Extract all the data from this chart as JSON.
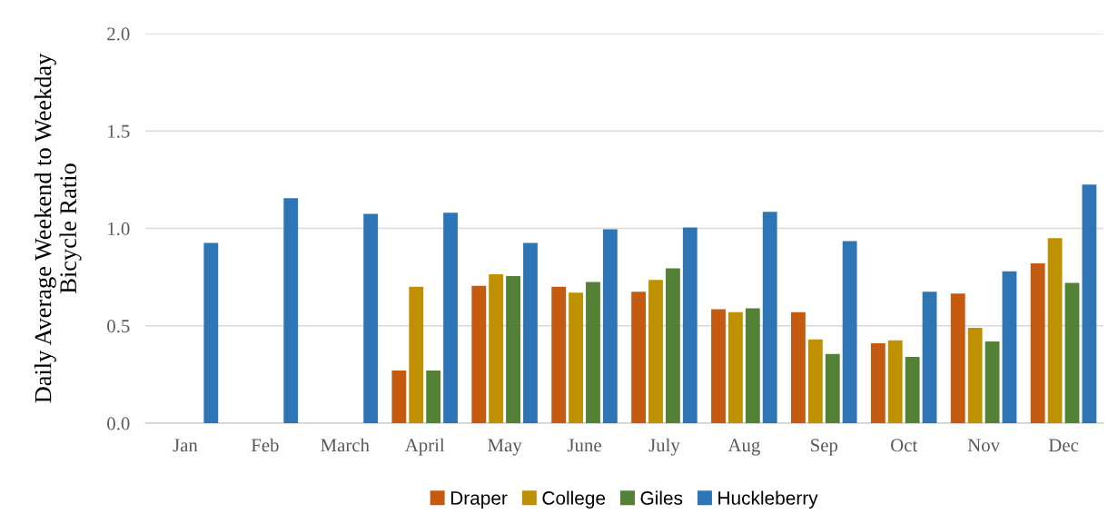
{
  "chart_data": {
    "type": "bar",
    "ylabel": "Daily Average Weekend to Weekday\nBicycle Ratio",
    "categories": [
      "Jan",
      "Feb",
      "March",
      "April",
      "May",
      "June",
      "July",
      "Aug",
      "Sep",
      "Oct",
      "Nov",
      "Dec"
    ],
    "series": [
      {
        "name": "Draper",
        "color": "#c55a11",
        "values": [
          null,
          null,
          null,
          0.27,
          0.705,
          0.7,
          0.675,
          0.585,
          0.57,
          0.41,
          0.665,
          0.82
        ]
      },
      {
        "name": "College",
        "color": "#bf9000",
        "values": [
          null,
          null,
          null,
          0.7,
          0.765,
          0.67,
          0.735,
          0.57,
          0.43,
          0.425,
          0.49,
          0.95
        ]
      },
      {
        "name": "Giles",
        "color": "#538135",
        "values": [
          null,
          null,
          null,
          0.27,
          0.755,
          0.725,
          0.795,
          0.59,
          0.355,
          0.34,
          0.42,
          0.72
        ]
      },
      {
        "name": "Huckleberry",
        "color": "#2e75b6",
        "values": [
          0.925,
          1.155,
          1.075,
          1.08,
          0.925,
          0.995,
          1.005,
          1.085,
          0.935,
          0.675,
          0.78,
          1.225
        ]
      }
    ],
    "ylim": [
      0,
      2
    ],
    "yticks": [
      {
        "value": 0,
        "label": "0.0"
      },
      {
        "value": 0.5,
        "label": "0.5"
      },
      {
        "value": 1,
        "label": "1.0"
      },
      {
        "value": 1.5,
        "label": "1.5"
      },
      {
        "value": 2,
        "label": "2.0"
      }
    ],
    "grid": "y",
    "legend": "bottom"
  }
}
